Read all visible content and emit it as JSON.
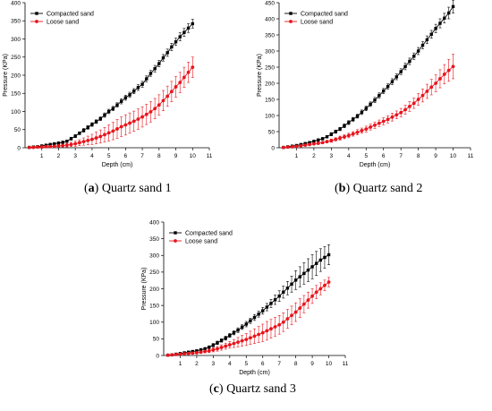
{
  "figure": {
    "captions": [
      {
        "tag": "a",
        "text": " Quartz sand 1"
      },
      {
        "tag": "b",
        "text": " Quartz sand 2"
      },
      {
        "tag": "c",
        "text": " Quartz sand 3"
      }
    ]
  },
  "colors": {
    "compacted": "#000000",
    "loose": "#e8141c",
    "axis": "#000000"
  },
  "chart_data": [
    {
      "type": "line",
      "title": "",
      "xlabel": "Depth (cm)",
      "ylabel": "Pressure (KPa)",
      "xlim": [
        0,
        11
      ],
      "ylim": [
        0,
        400
      ],
      "xticks": [
        1,
        2,
        3,
        4,
        5,
        6,
        7,
        8,
        9,
        10,
        11
      ],
      "yticks": [
        0,
        50,
        100,
        150,
        200,
        250,
        300,
        350,
        400
      ],
      "grid": false,
      "legend": "top-left",
      "x": [
        0.25,
        0.5,
        0.75,
        1,
        1.25,
        1.5,
        1.75,
        2,
        2.25,
        2.5,
        2.75,
        3,
        3.25,
        3.5,
        3.75,
        4,
        4.25,
        4.5,
        4.75,
        5,
        5.25,
        5.5,
        5.75,
        6,
        6.25,
        6.5,
        6.75,
        7,
        7.25,
        7.5,
        7.75,
        8,
        8.25,
        8.5,
        8.75,
        9,
        9.25,
        9.5,
        9.75,
        10
      ],
      "series": [
        {
          "name": "Compacted sand",
          "marker": "square",
          "values": [
            1,
            2,
            3,
            5,
            7,
            9,
            11,
            13,
            15,
            18,
            25,
            32,
            40,
            48,
            56,
            64,
            72,
            80,
            90,
            100,
            108,
            118,
            128,
            138,
            146,
            156,
            166,
            175,
            190,
            205,
            218,
            232,
            248,
            262,
            278,
            292,
            306,
            318,
            330,
            342
          ],
          "errors": [
            2,
            2,
            2,
            2,
            2,
            3,
            3,
            3,
            3,
            3,
            4,
            4,
            4,
            5,
            5,
            5,
            5,
            5,
            6,
            6,
            6,
            6,
            7,
            7,
            7,
            7,
            8,
            8,
            8,
            8,
            9,
            9,
            9,
            10,
            10,
            10,
            11,
            11,
            12,
            12
          ]
        },
        {
          "name": "Loose sand",
          "marker": "circle",
          "values": [
            1,
            1,
            2,
            2,
            3,
            3,
            4,
            5,
            6,
            7,
            9,
            11,
            14,
            17,
            20,
            23,
            27,
            31,
            36,
            41,
            46,
            52,
            58,
            63,
            68,
            73,
            79,
            85,
            92,
            99,
            108,
            118,
            130,
            142,
            155,
            168,
            180,
            194,
            208,
            222
          ],
          "errors": [
            2,
            2,
            2,
            2,
            2,
            3,
            3,
            3,
            4,
            5,
            6,
            7,
            8,
            10,
            12,
            14,
            16,
            18,
            20,
            22,
            24,
            26,
            27,
            28,
            28,
            28,
            28,
            28,
            28,
            28,
            28,
            28,
            28,
            28,
            28,
            28,
            28,
            28,
            28,
            28
          ]
        }
      ]
    },
    {
      "type": "line",
      "title": "",
      "xlabel": "Depth (cm)",
      "ylabel": "Pressure (KPa)",
      "xlim": [
        0,
        11
      ],
      "ylim": [
        0,
        450
      ],
      "xticks": [
        1,
        2,
        3,
        4,
        5,
        6,
        7,
        8,
        9,
        10,
        11
      ],
      "yticks": [
        0,
        50,
        100,
        150,
        200,
        250,
        300,
        350,
        400,
        450
      ],
      "grid": false,
      "legend": "top-left",
      "x": [
        0.25,
        0.5,
        0.75,
        1,
        1.25,
        1.5,
        1.75,
        2,
        2.25,
        2.5,
        2.75,
        3,
        3.25,
        3.5,
        3.75,
        4,
        4.25,
        4.5,
        4.75,
        5,
        5.25,
        5.5,
        5.75,
        6,
        6.25,
        6.5,
        6.75,
        7,
        7.25,
        7.5,
        7.75,
        8,
        8.25,
        8.5,
        8.75,
        9,
        9.25,
        9.5,
        9.75,
        10
      ],
      "series": [
        {
          "name": "Compacted sand",
          "marker": "square",
          "values": [
            1,
            3,
            5,
            7,
            10,
            13,
            16,
            20,
            24,
            28,
            34,
            42,
            50,
            58,
            68,
            78,
            88,
            98,
            110,
            122,
            135,
            148,
            162,
            176,
            190,
            205,
            220,
            236,
            252,
            268,
            284,
            300,
            318,
            335,
            352,
            370,
            386,
            402,
            418,
            438
          ],
          "errors": [
            2,
            2,
            2,
            2,
            3,
            3,
            3,
            3,
            4,
            4,
            4,
            5,
            5,
            5,
            6,
            6,
            6,
            6,
            7,
            7,
            7,
            8,
            8,
            8,
            8,
            9,
            9,
            9,
            10,
            10,
            10,
            11,
            11,
            12,
            12,
            13,
            14,
            15,
            18,
            20
          ]
        },
        {
          "name": "Loose sand",
          "marker": "circle",
          "values": [
            1,
            2,
            3,
            4,
            6,
            8,
            10,
            12,
            14,
            16,
            19,
            22,
            26,
            30,
            34,
            38,
            43,
            48,
            53,
            58,
            64,
            70,
            76,
            82,
            88,
            95,
            102,
            109,
            118,
            128,
            138,
            150,
            162,
            175,
            188,
            200,
            214,
            228,
            240,
            252
          ],
          "errors": [
            2,
            2,
            2,
            2,
            3,
            3,
            3,
            3,
            4,
            4,
            4,
            5,
            5,
            6,
            6,
            7,
            7,
            8,
            8,
            9,
            9,
            10,
            10,
            11,
            11,
            12,
            12,
            13,
            14,
            15,
            16,
            18,
            20,
            22,
            24,
            26,
            28,
            30,
            34,
            38
          ]
        }
      ]
    },
    {
      "type": "line",
      "title": "",
      "xlabel": "Depth (cm)",
      "ylabel": "Pressure (KPa)",
      "xlim": [
        0,
        11
      ],
      "ylim": [
        0,
        400
      ],
      "xticks": [
        1,
        2,
        3,
        4,
        5,
        6,
        7,
        8,
        9,
        10,
        11
      ],
      "yticks": [
        0,
        50,
        100,
        150,
        200,
        250,
        300,
        350,
        400
      ],
      "grid": false,
      "legend": "top-left",
      "x": [
        0.25,
        0.5,
        0.75,
        1,
        1.25,
        1.5,
        1.75,
        2,
        2.25,
        2.5,
        2.75,
        3,
        3.25,
        3.5,
        3.75,
        4,
        4.25,
        4.5,
        4.75,
        5,
        5.25,
        5.5,
        5.75,
        6,
        6.25,
        6.5,
        6.75,
        7,
        7.25,
        7.5,
        7.75,
        8,
        8.25,
        8.5,
        8.75,
        9,
        9.25,
        9.5,
        9.75,
        10
      ],
      "series": [
        {
          "name": "Compacted sand",
          "marker": "square",
          "values": [
            1,
            2,
            4,
            6,
            8,
            10,
            12,
            14,
            17,
            20,
            25,
            31,
            38,
            45,
            52,
            60,
            68,
            76,
            85,
            94,
            104,
            114,
            124,
            134,
            145,
            156,
            167,
            178,
            190,
            202,
            214,
            226,
            236,
            246,
            256,
            266,
            276,
            286,
            294,
            302
          ],
          "errors": [
            2,
            2,
            2,
            2,
            3,
            3,
            3,
            3,
            4,
            4,
            4,
            5,
            5,
            5,
            6,
            6,
            6,
            7,
            7,
            8,
            8,
            9,
            9,
            10,
            11,
            12,
            14,
            16,
            18,
            20,
            24,
            28,
            30,
            32,
            34,
            36,
            36,
            34,
            32,
            30
          ]
        },
        {
          "name": "Loose sand",
          "marker": "circle",
          "values": [
            1,
            2,
            3,
            4,
            5,
            6,
            7,
            8,
            10,
            12,
            14,
            17,
            20,
            24,
            28,
            32,
            36,
            40,
            44,
            48,
            53,
            58,
            63,
            68,
            74,
            80,
            86,
            92,
            100,
            110,
            120,
            130,
            142,
            154,
            166,
            178,
            190,
            200,
            210,
            220
          ],
          "errors": [
            2,
            2,
            2,
            2,
            2,
            3,
            3,
            3,
            4,
            4,
            5,
            6,
            7,
            8,
            9,
            10,
            12,
            14,
            16,
            18,
            20,
            22,
            24,
            26,
            28,
            28,
            28,
            28,
            28,
            28,
            28,
            28,
            28,
            26,
            24,
            22,
            20,
            18,
            16,
            14
          ]
        }
      ]
    }
  ]
}
